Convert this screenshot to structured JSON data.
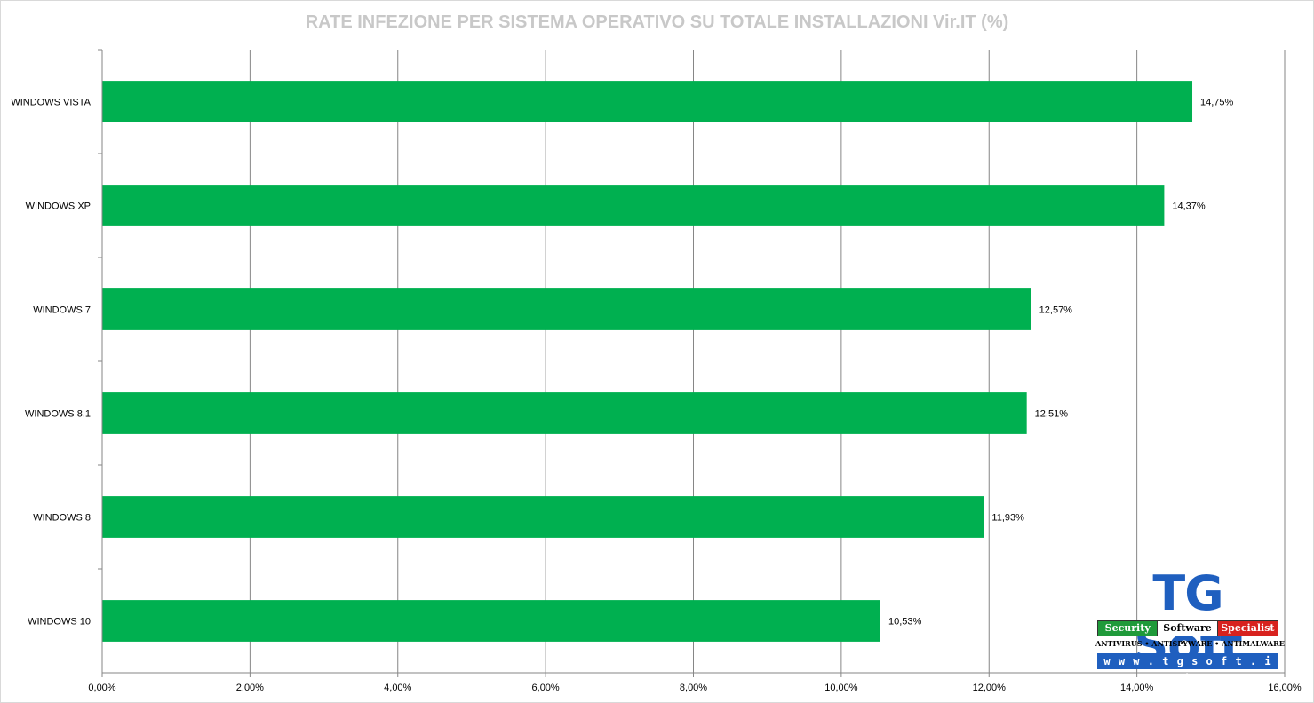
{
  "chart_data": {
    "type": "bar",
    "orientation": "horizontal",
    "title": "RATE INFEZIONE PER SISTEMA OPERATIVO SU TOTALE INSTALLAZIONI Vir.IT (%)",
    "categories": [
      "WINDOWS VISTA",
      "WINDOWS XP",
      "WINDOWS 7",
      "WINDOWS 8.1",
      "WINDOWS 8",
      "WINDOWS 10"
    ],
    "values": [
      14.75,
      14.37,
      12.57,
      12.51,
      11.93,
      10.53
    ],
    "data_labels": [
      "14,75%",
      "14,37%",
      "12,57%",
      "12,51%",
      "11,93%",
      "10,53%"
    ],
    "xlim": [
      0,
      16
    ],
    "x_ticks": [
      0,
      2,
      4,
      6,
      8,
      10,
      12,
      14,
      16
    ],
    "x_tick_labels": [
      "0,00%",
      "2,00%",
      "4,00%",
      "6,00%",
      "8,00%",
      "10,00%",
      "12,00%",
      "14,00%",
      "16,00%"
    ],
    "xlabel": "",
    "ylabel": "",
    "grid": true,
    "legend": "none",
    "bar_color": "#00b050",
    "title_color": "#c8c8c8"
  },
  "logo": {
    "brand": "TG Soft",
    "strip": [
      "Security",
      "Software",
      "Specialist"
    ],
    "tagline": "ANTIVIRUS • ANTISPYWARE • ANTIMALWARE",
    "url": "w w w . t g s o f t . i t",
    "colors": {
      "blue": "#1f5fbf",
      "green": "#1f9a3a",
      "red": "#d8221e"
    }
  }
}
